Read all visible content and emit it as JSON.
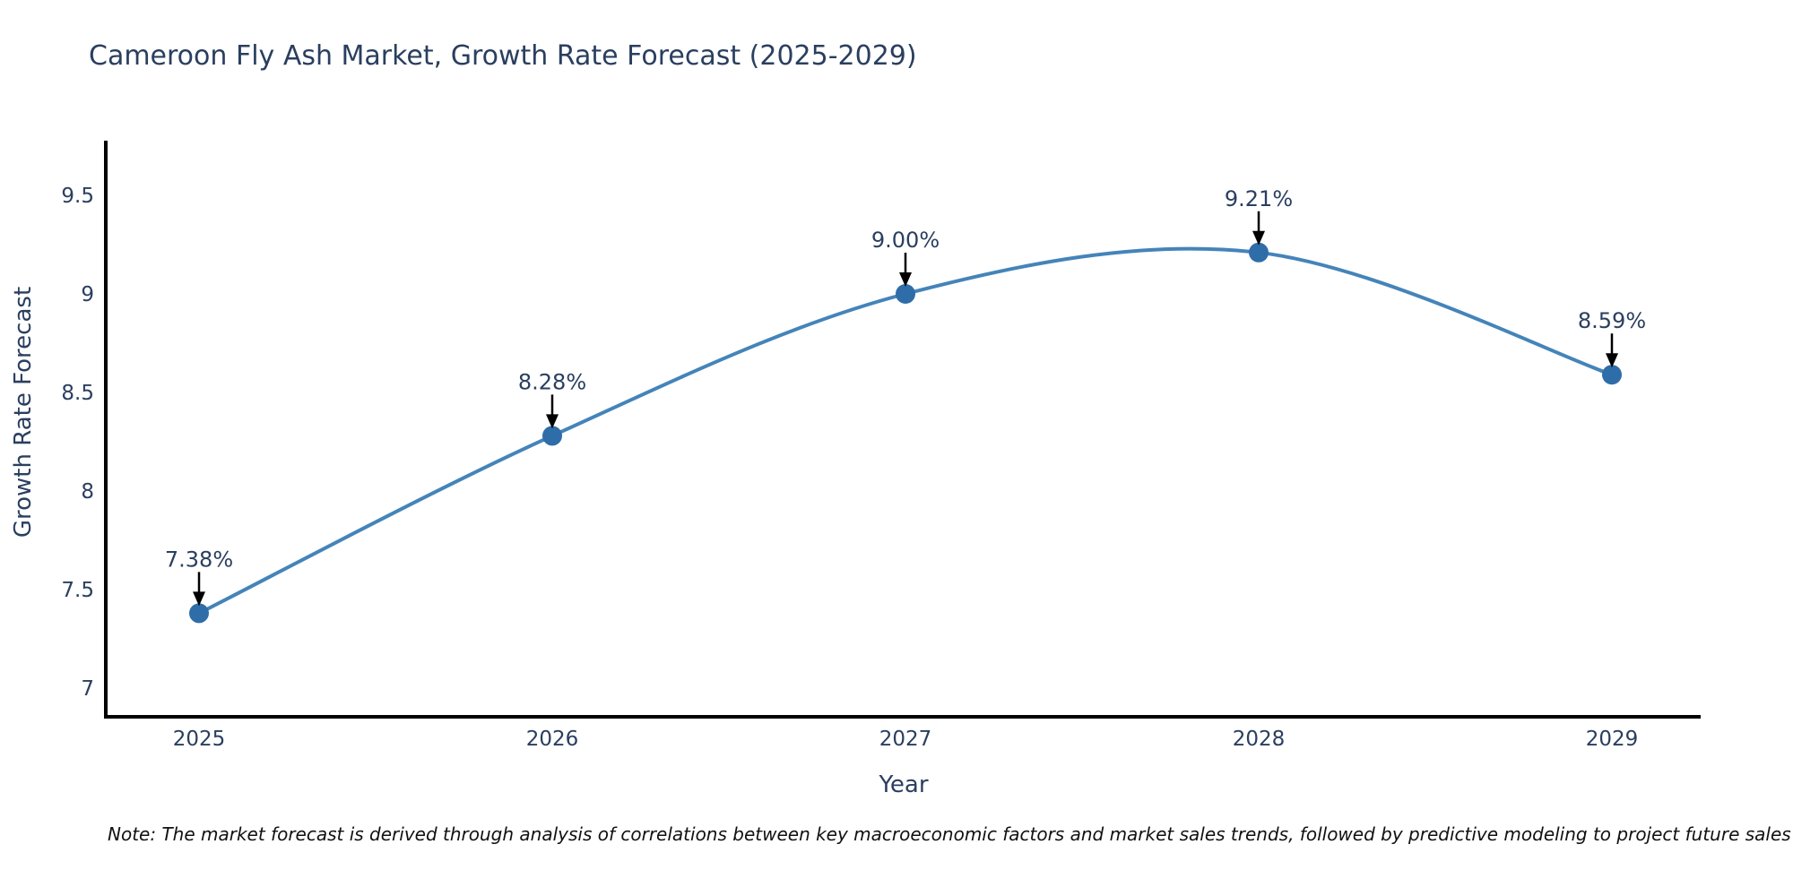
{
  "title": "Cameroon Fly Ash Market, Growth Rate Forecast (2025-2029)",
  "footnote": "Note: The market forecast is derived through analysis of correlations between key macroeconomic factors and market sales trends, followed by predictive modeling to project future sales",
  "chart_data": {
    "type": "line",
    "title": "Cameroon Fly Ash Market, Growth Rate Forecast (2025-2029)",
    "xlabel": "Year",
    "ylabel": "Growth Rate Forecast",
    "categories": [
      "2025",
      "2026",
      "2027",
      "2028",
      "2029"
    ],
    "series": [
      {
        "name": "Growth Rate Forecast",
        "values": [
          7.38,
          8.28,
          9.0,
          9.21,
          8.59
        ],
        "point_labels": [
          "7.38%",
          "8.28%",
          "9.00%",
          "9.21%",
          "8.59%"
        ]
      }
    ],
    "yticks": [
      "9.5",
      "9",
      "8.5",
      "8",
      "7.5",
      "7"
    ],
    "ytick_values": [
      9.5,
      9.0,
      8.5,
      8.0,
      7.5,
      7.0
    ],
    "ylim": [
      6.85,
      9.78
    ],
    "line_style": "spline",
    "grid": false,
    "legend_position": "none",
    "annotations_have_arrows": true,
    "colors": {
      "line": "#4484b9",
      "marker": "#2f6da8",
      "arrow": "#000000",
      "axis": "#000000",
      "text": "#2a3f5f",
      "footnote_text": "#111111",
      "background": "#ffffff"
    }
  }
}
